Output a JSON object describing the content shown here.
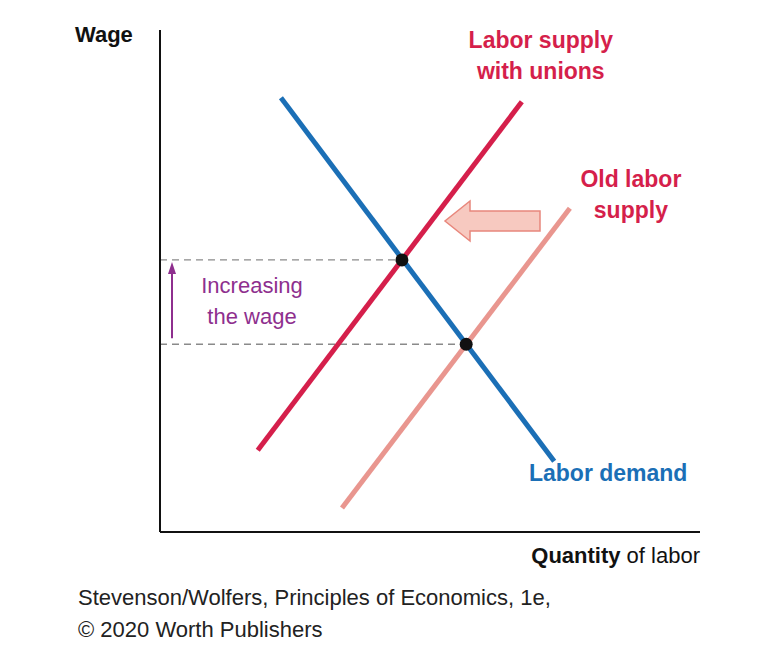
{
  "chart_data": {
    "type": "line",
    "x_label": "Quantity of labor",
    "y_label": "Wage",
    "xlim": [
      0,
      10
    ],
    "ylim": [
      0,
      10
    ],
    "tick_labels": false,
    "grid": false,
    "series": [
      {
        "name": "Labor demand",
        "color": "#1b6fb6",
        "x": [
          2.24,
          7.3
        ],
        "values": [
          8.65,
          1.41
        ]
      },
      {
        "name": "Labor supply\nwith unions",
        "color": "#d51f4b",
        "x": [
          1.81,
          6.7
        ],
        "values": [
          1.63,
          8.57
        ]
      },
      {
        "name": "Old labor\nsupply",
        "color": "#e9968f",
        "x": [
          3.37,
          7.59
        ],
        "values": [
          0.48,
          6.45
        ]
      },
      {
        "type": "scatter",
        "color": "#111111",
        "marker": "circle",
        "x": [
          4.48,
          5.67
        ],
        "values": [
          5.42,
          3.74
        ]
      }
    ],
    "annotations": [
      {
        "text": "Increasing\nthe wage",
        "color": "#8e2f8e"
      }
    ],
    "source": [
      "Stevenson/Wolfers, Principles of Economics, 1e,",
      "© 2020 Worth Publishers"
    ]
  }
}
